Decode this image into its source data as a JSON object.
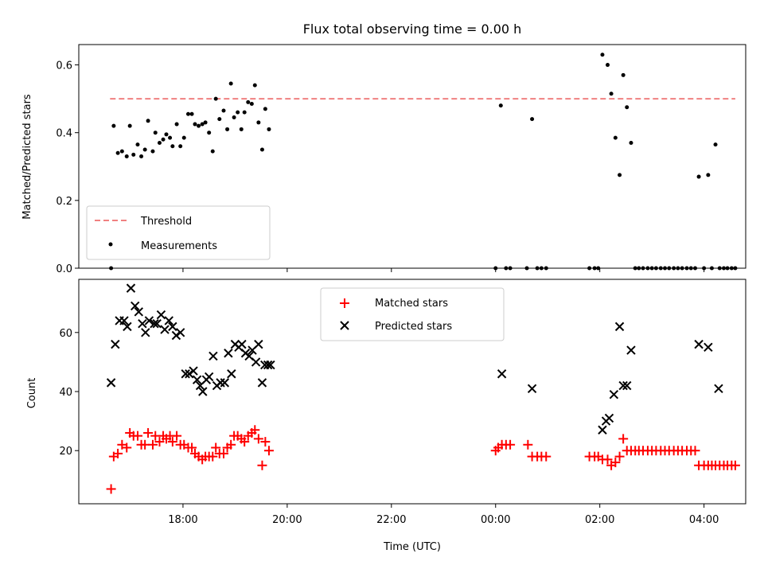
{
  "chart_data": [
    {
      "type": "scatter",
      "title": "Flux total observing time = 0.00 h",
      "ylabel": "Matched/Predicted stars",
      "xlabel": "",
      "xlim_hours": [
        16.0,
        28.8
      ],
      "ylim": [
        0,
        0.66
      ],
      "yticks": [
        0.0,
        0.2,
        0.4,
        0.6
      ],
      "ytick_labels": [
        "0.0",
        "0.2",
        "0.4",
        "0.6"
      ],
      "xticks_hours": [
        18,
        20,
        22,
        24,
        26,
        28
      ],
      "grid": false,
      "legend_position": "lower-left",
      "threshold": {
        "name": "Threshold",
        "y": 0.5,
        "x_range_hours": [
          16.6,
          28.6
        ],
        "color": "#f08080"
      },
      "series": [
        {
          "name": "Measurements",
          "color": "#000000",
          "points": [
            [
              16.62,
              0.0
            ],
            [
              16.67,
              0.42
            ],
            [
              16.75,
              0.34
            ],
            [
              16.83,
              0.345
            ],
            [
              16.92,
              0.33
            ],
            [
              16.98,
              0.42
            ],
            [
              17.05,
              0.335
            ],
            [
              17.13,
              0.365
            ],
            [
              17.2,
              0.33
            ],
            [
              17.27,
              0.35
            ],
            [
              17.33,
              0.435
            ],
            [
              17.42,
              0.345
            ],
            [
              17.47,
              0.4
            ],
            [
              17.55,
              0.37
            ],
            [
              17.62,
              0.38
            ],
            [
              17.68,
              0.395
            ],
            [
              17.75,
              0.385
            ],
            [
              17.8,
              0.36
            ],
            [
              17.88,
              0.425
            ],
            [
              17.95,
              0.36
            ],
            [
              18.02,
              0.385
            ],
            [
              18.1,
              0.455
            ],
            [
              18.17,
              0.455
            ],
            [
              18.23,
              0.425
            ],
            [
              18.3,
              0.42
            ],
            [
              18.37,
              0.425
            ],
            [
              18.43,
              0.43
            ],
            [
              18.5,
              0.4
            ],
            [
              18.57,
              0.345
            ],
            [
              18.63,
              0.5
            ],
            [
              18.7,
              0.44
            ],
            [
              18.78,
              0.465
            ],
            [
              18.85,
              0.41
            ],
            [
              18.92,
              0.545
            ],
            [
              18.98,
              0.445
            ],
            [
              19.05,
              0.46
            ],
            [
              19.12,
              0.41
            ],
            [
              19.18,
              0.46
            ],
            [
              19.25,
              0.49
            ],
            [
              19.32,
              0.485
            ],
            [
              19.38,
              0.54
            ],
            [
              19.45,
              0.43
            ],
            [
              19.52,
              0.35
            ],
            [
              19.58,
              0.47
            ],
            [
              19.65,
              0.41
            ],
            [
              24.0,
              0.0
            ],
            [
              24.1,
              0.48
            ],
            [
              24.2,
              0.0
            ],
            [
              24.28,
              0.0
            ],
            [
              24.6,
              0.0
            ],
            [
              24.7,
              0.44
            ],
            [
              24.8,
              0.0
            ],
            [
              24.88,
              0.0
            ],
            [
              24.97,
              0.0
            ],
            [
              25.8,
              0.0
            ],
            [
              25.9,
              0.0
            ],
            [
              25.97,
              0.0
            ],
            [
              26.05,
              0.63
            ],
            [
              26.15,
              0.6
            ],
            [
              26.22,
              0.515
            ],
            [
              26.3,
              0.385
            ],
            [
              26.38,
              0.275
            ],
            [
              26.45,
              0.57
            ],
            [
              26.52,
              0.475
            ],
            [
              26.6,
              0.37
            ],
            [
              26.68,
              0.0
            ],
            [
              26.75,
              0.0
            ],
            [
              26.83,
              0.0
            ],
            [
              26.92,
              0.0
            ],
            [
              27.0,
              0.0
            ],
            [
              27.08,
              0.0
            ],
            [
              27.17,
              0.0
            ],
            [
              27.25,
              0.0
            ],
            [
              27.33,
              0.0
            ],
            [
              27.42,
              0.0
            ],
            [
              27.5,
              0.0
            ],
            [
              27.58,
              0.0
            ],
            [
              27.67,
              0.0
            ],
            [
              27.75,
              0.0
            ],
            [
              27.83,
              0.0
            ],
            [
              27.9,
              0.27
            ],
            [
              28.0,
              0.0
            ],
            [
              28.08,
              0.275
            ],
            [
              28.15,
              0.0
            ],
            [
              28.22,
              0.365
            ],
            [
              28.3,
              0.0
            ],
            [
              28.38,
              0.0
            ],
            [
              28.45,
              0.0
            ],
            [
              28.53,
              0.0
            ],
            [
              28.6,
              0.0
            ]
          ]
        }
      ]
    },
    {
      "type": "scatter",
      "title": "",
      "xlabel": "Time (UTC)",
      "ylabel": "Count",
      "xlim_hours": [
        16.0,
        28.8
      ],
      "ylim": [
        2,
        78
      ],
      "yticks": [
        20,
        40,
        60
      ],
      "ytick_labels": [
        "20",
        "40",
        "60"
      ],
      "xticks_hours": [
        18,
        20,
        22,
        24,
        26,
        28
      ],
      "xtick_labels": [
        "18:00",
        "20:00",
        "22:00",
        "00:00",
        "02:00",
        "04:00"
      ],
      "grid": false,
      "legend_position": "upper-center",
      "series": [
        {
          "name": "Matched stars",
          "color": "#ff0000",
          "marker": "plus",
          "points": [
            [
              16.62,
              7
            ],
            [
              16.67,
              18
            ],
            [
              16.75,
              19
            ],
            [
              16.83,
              22
            ],
            [
              16.92,
              21
            ],
            [
              16.98,
              26
            ],
            [
              17.05,
              25
            ],
            [
              17.13,
              25
            ],
            [
              17.2,
              22
            ],
            [
              17.27,
              22
            ],
            [
              17.33,
              26
            ],
            [
              17.42,
              22
            ],
            [
              17.47,
              25
            ],
            [
              17.55,
              23
            ],
            [
              17.62,
              25
            ],
            [
              17.68,
              24
            ],
            [
              17.75,
              25
            ],
            [
              17.8,
              23
            ],
            [
              17.88,
              25
            ],
            [
              17.95,
              22
            ],
            [
              18.02,
              22
            ],
            [
              18.1,
              21
            ],
            [
              18.17,
              21
            ],
            [
              18.23,
              19
            ],
            [
              18.3,
              18
            ],
            [
              18.37,
              17
            ],
            [
              18.43,
              18
            ],
            [
              18.5,
              18
            ],
            [
              18.57,
              18
            ],
            [
              18.63,
              21
            ],
            [
              18.7,
              19
            ],
            [
              18.78,
              19
            ],
            [
              18.85,
              21
            ],
            [
              18.92,
              22
            ],
            [
              18.98,
              25
            ],
            [
              19.05,
              25
            ],
            [
              19.12,
              24
            ],
            [
              19.18,
              23
            ],
            [
              19.25,
              25
            ],
            [
              19.32,
              26
            ],
            [
              19.38,
              27
            ],
            [
              19.45,
              24
            ],
            [
              19.52,
              15
            ],
            [
              19.58,
              23
            ],
            [
              19.65,
              20
            ],
            [
              24.0,
              20
            ],
            [
              24.05,
              21
            ],
            [
              24.12,
              22
            ],
            [
              24.2,
              22
            ],
            [
              24.28,
              22
            ],
            [
              24.62,
              22
            ],
            [
              24.7,
              18
            ],
            [
              24.8,
              18
            ],
            [
              24.88,
              18
            ],
            [
              24.97,
              18
            ],
            [
              25.8,
              18
            ],
            [
              25.9,
              18
            ],
            [
              25.97,
              18
            ],
            [
              26.05,
              17
            ],
            [
              26.15,
              17
            ],
            [
              26.22,
              15
            ],
            [
              26.3,
              16
            ],
            [
              26.38,
              18
            ],
            [
              26.45,
              24
            ],
            [
              26.52,
              20
            ],
            [
              26.6,
              20
            ],
            [
              26.68,
              20
            ],
            [
              26.75,
              20
            ],
            [
              26.83,
              20
            ],
            [
              26.92,
              20
            ],
            [
              27.0,
              20
            ],
            [
              27.08,
              20
            ],
            [
              27.17,
              20
            ],
            [
              27.25,
              20
            ],
            [
              27.33,
              20
            ],
            [
              27.42,
              20
            ],
            [
              27.5,
              20
            ],
            [
              27.58,
              20
            ],
            [
              27.67,
              20
            ],
            [
              27.75,
              20
            ],
            [
              27.83,
              20
            ],
            [
              27.9,
              15
            ],
            [
              28.0,
              15
            ],
            [
              28.08,
              15
            ],
            [
              28.15,
              15
            ],
            [
              28.22,
              15
            ],
            [
              28.3,
              15
            ],
            [
              28.38,
              15
            ],
            [
              28.45,
              15
            ],
            [
              28.53,
              15
            ],
            [
              28.6,
              15
            ]
          ]
        },
        {
          "name": "Predicted stars",
          "color": "#000000",
          "marker": "x",
          "points": [
            [
              16.62,
              43
            ],
            [
              16.7,
              56
            ],
            [
              16.78,
              64
            ],
            [
              16.87,
              64
            ],
            [
              16.93,
              62
            ],
            [
              17.0,
              75
            ],
            [
              17.08,
              69
            ],
            [
              17.15,
              67
            ],
            [
              17.22,
              63
            ],
            [
              17.28,
              60
            ],
            [
              17.35,
              64
            ],
            [
              17.45,
              63
            ],
            [
              17.5,
              63
            ],
            [
              17.58,
              66
            ],
            [
              17.65,
              61
            ],
            [
              17.73,
              64
            ],
            [
              17.8,
              62
            ],
            [
              17.87,
              59
            ],
            [
              17.95,
              60
            ],
            [
              18.05,
              46
            ],
            [
              18.12,
              46
            ],
            [
              18.2,
              47
            ],
            [
              18.27,
              44
            ],
            [
              18.33,
              42
            ],
            [
              18.38,
              40
            ],
            [
              18.45,
              44
            ],
            [
              18.5,
              45
            ],
            [
              18.58,
              52
            ],
            [
              18.65,
              42
            ],
            [
              18.72,
              43
            ],
            [
              18.8,
              43
            ],
            [
              18.87,
              53
            ],
            [
              18.93,
              46
            ],
            [
              19.0,
              56
            ],
            [
              19.07,
              55
            ],
            [
              19.13,
              56
            ],
            [
              19.2,
              53
            ],
            [
              19.27,
              52
            ],
            [
              19.33,
              54
            ],
            [
              19.4,
              50
            ],
            [
              19.45,
              56
            ],
            [
              19.52,
              43
            ],
            [
              19.57,
              49
            ],
            [
              19.63,
              49
            ],
            [
              19.68,
              49
            ],
            [
              24.12,
              46
            ],
            [
              24.7,
              41
            ],
            [
              26.05,
              27
            ],
            [
              26.12,
              30
            ],
            [
              26.18,
              31
            ],
            [
              26.27,
              39
            ],
            [
              26.38,
              62
            ],
            [
              26.45,
              42
            ],
            [
              26.52,
              42
            ],
            [
              26.6,
              54
            ],
            [
              27.9,
              56
            ],
            [
              28.08,
              55
            ],
            [
              28.28,
              41
            ]
          ]
        }
      ]
    }
  ]
}
